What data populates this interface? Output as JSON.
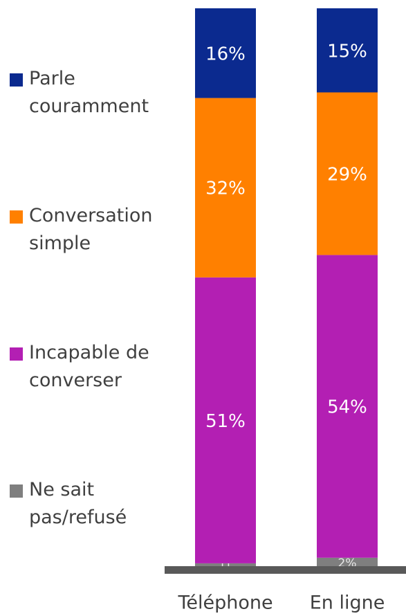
{
  "chart_data": {
    "type": "stacked-bar",
    "categories": [
      "Téléphone",
      "En ligne"
    ],
    "ylim": [
      0,
      100
    ],
    "series": [
      {
        "name": "Parle couramment",
        "color": "#0b2a8f",
        "values": [
          16,
          15
        ],
        "value_labels": [
          "16%",
          "15%"
        ]
      },
      {
        "name": "Conversation simple",
        "color": "#ff8000",
        "values": [
          32,
          29
        ],
        "value_labels": [
          "32%",
          "29%"
        ]
      },
      {
        "name": "Incapable de converser",
        "color": "#b31fb3",
        "values": [
          51,
          54
        ],
        "value_labels": [
          "51%",
          "54%"
        ]
      },
      {
        "name": "Ne sait pas/refusé",
        "color": "#7f7f7f",
        "values": [
          1,
          2
        ],
        "value_labels": [
          "[]",
          "2%"
        ]
      }
    ]
  }
}
